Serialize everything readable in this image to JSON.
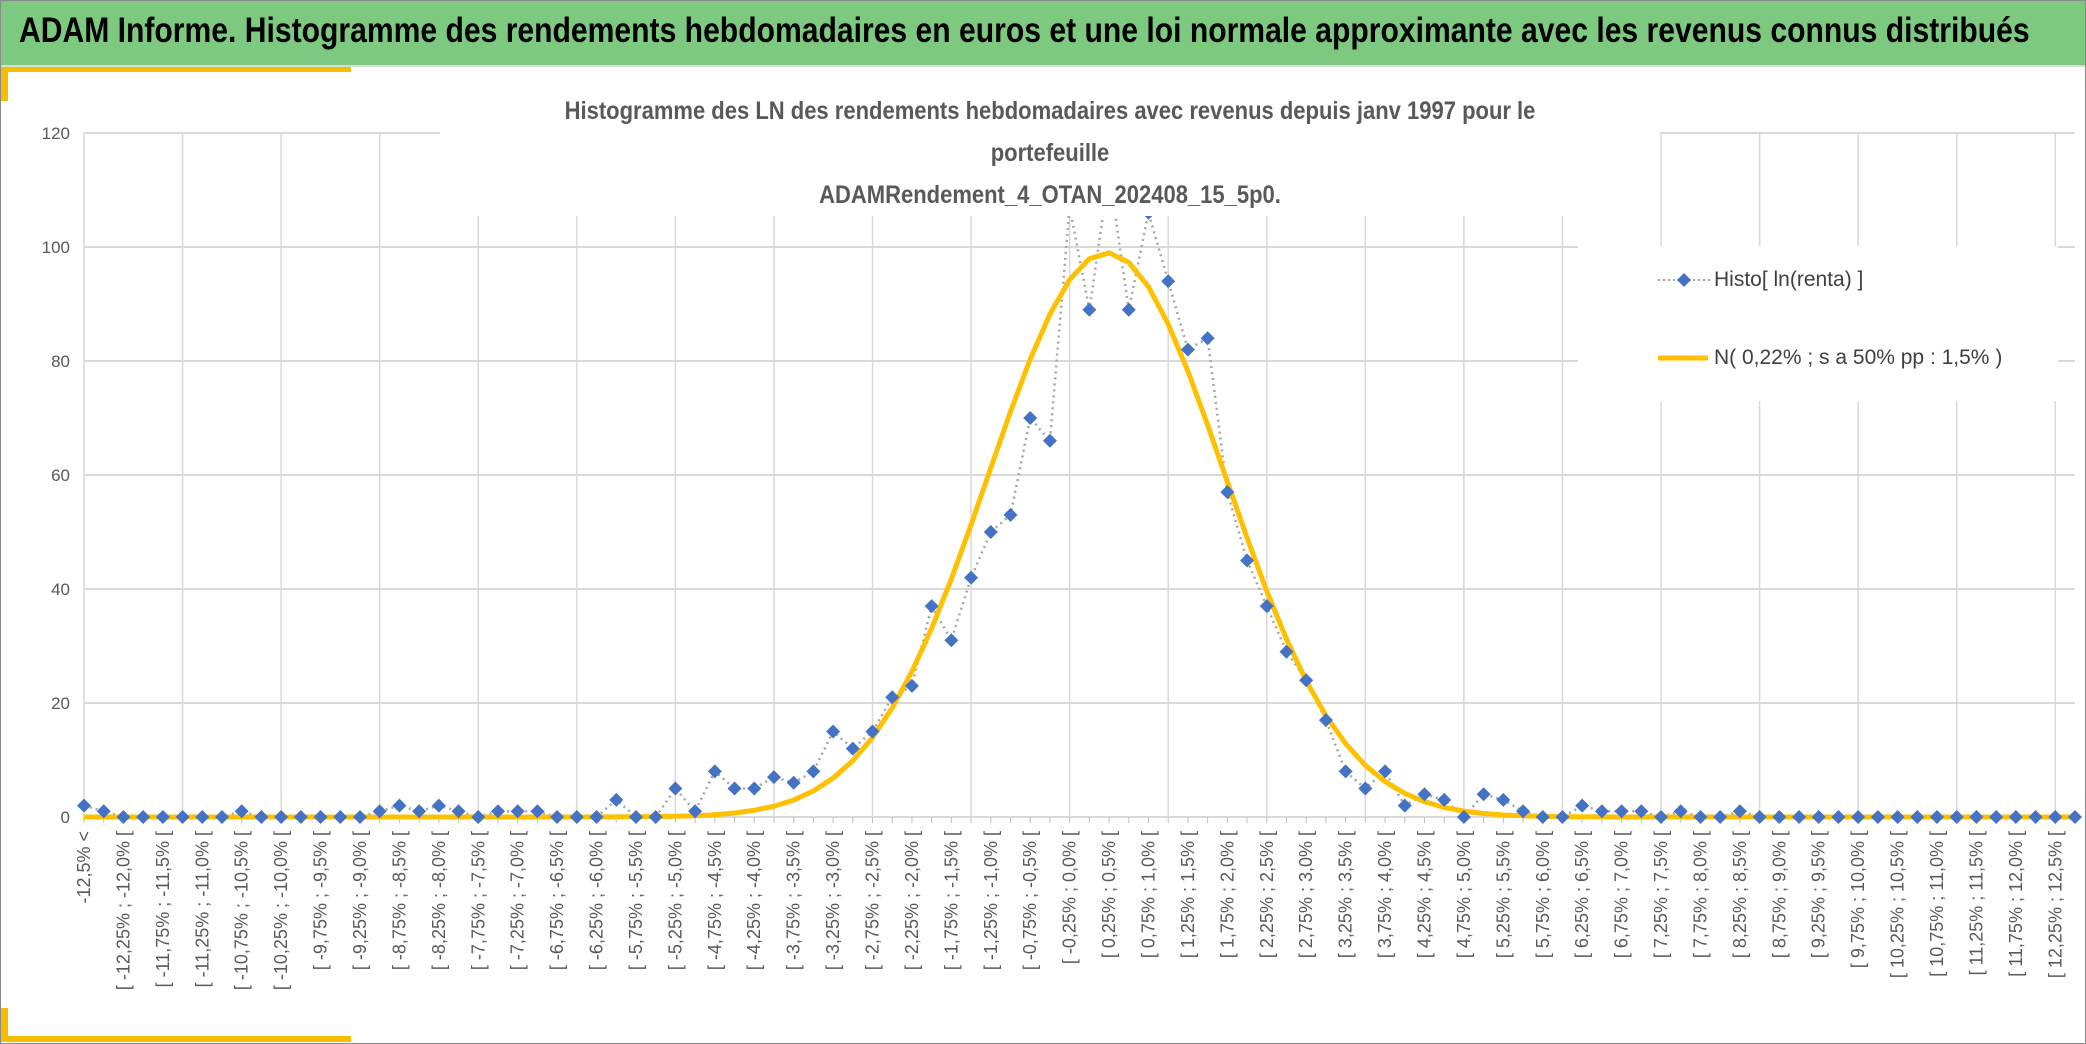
{
  "header": {
    "title": "ADAM Informe. Histogramme des rendements hebdomadaires en euros et une loi normale approximante avec les revenus connus distribués"
  },
  "colors": {
    "header_bg": "#7dc97f",
    "accent": "#f5be00",
    "series_histo": "#4472c4",
    "series_normal": "#ffc000"
  },
  "chart_data": {
    "type": "line",
    "title_line1": "Histogramme des LN des rendements hebdomadaires avec revenus depuis janv 1997 pour le portefeuille",
    "title_line2": "ADAMRendement_4_OTAN_202408_15_5p0.",
    "xlabel": "",
    "ylabel": "",
    "ylim": [
      0,
      120
    ],
    "yticks": [
      "0",
      "20",
      "40",
      "60",
      "80",
      "100",
      "120"
    ],
    "grid": true,
    "legend_position": "right",
    "x_tick_labels": [
      "-12,5% <",
      "[ -12,25% ; -12,0% [",
      "[ -11,75% ; -11,5% [",
      "[ -11,25% ; -11,0% [",
      "[ -10,75% ; -10,5% [",
      "[ -10,25% ; -10,0% [",
      "[ -9,75% ; -9,5% [",
      "[ -9,25% ; -9,0% [",
      "[ -8,75% ; -8,5% [",
      "[ -8,25% ; -8,0% [",
      "[ -7,75% ; -7,5% [",
      "[ -7,25% ; -7,0% [",
      "[ -6,75% ; -6,5% [",
      "[ -6,25% ; -6,0% [",
      "[ -5,75% ; -5,5% [",
      "[ -5,25% ; -5,0% [",
      "[ -4,75% ; -4,5% [",
      "[ -4,25% ; -4,0% [",
      "[ -3,75% ; -3,5% [",
      "[ -3,25% ; -3,0% [",
      "[ -2,75% ; -2,5% [",
      "[ -2,25% ; -2,0% [",
      "[ -1,75% ; -1,5% [",
      "[ -1,25% ; -1,0% [",
      "[ -0,75% ; -0,5% [",
      "[ -0,25% ; 0,0% [",
      "[ 0,25% ; 0,5% [",
      "[ 0,75% ; 1,0% [",
      "[ 1,25% ; 1,5% [",
      "[ 1,75% ; 2,0% [",
      "[ 2,25% ; 2,5% [",
      "[ 2,75% ; 3,0% [",
      "[ 3,25% ; 3,5% [",
      "[ 3,75% ; 4,0% [",
      "[ 4,25% ; 4,5% [",
      "[ 4,75% ; 5,0% [",
      "[ 5,25% ; 5,5% [",
      "[ 5,75% ; 6,0% [",
      "[ 6,25% ; 6,5% [",
      "[ 6,75% ; 7,0% [",
      "[ 7,25% ; 7,5% [",
      "[ 7,75% ; 8,0% [",
      "[ 8,25% ; 8,5% [",
      "[ 8,75% ; 9,0% [",
      "[ 9,25% ; 9,5% [",
      "[ 9,75% ; 10,0% [",
      "[ 10,25% ; 10,5% [",
      "[ 10,75% ; 11,0% [",
      "[ 11,25% ; 11,5% [",
      "[ 11,75% ; 12,0% [",
      "[ 12,25% ; 12,5% ["
    ],
    "series": [
      {
        "name": "Histo[ ln(renta) ]",
        "values": [
          2,
          1,
          0,
          0,
          0,
          0,
          0,
          0,
          1,
          0,
          0,
          0,
          0,
          0,
          0,
          1,
          2,
          1,
          2,
          1,
          0,
          1,
          1,
          1,
          0,
          0,
          0,
          3,
          0,
          0,
          5,
          1,
          8,
          5,
          5,
          7,
          6,
          8,
          15,
          12,
          15,
          21,
          23,
          37,
          31,
          42,
          50,
          53,
          70,
          66,
          107,
          89,
          113,
          89,
          106,
          94,
          82,
          84,
          57,
          45,
          37,
          29,
          24,
          17,
          8,
          5,
          8,
          2,
          4,
          3,
          0,
          4,
          3,
          1,
          0,
          0,
          2,
          1,
          1,
          1,
          0,
          1,
          0,
          0,
          1,
          0,
          0,
          0,
          0,
          0,
          0,
          0,
          0,
          0,
          0,
          0,
          0,
          0,
          0,
          0,
          0,
          0
        ]
      },
      {
        "name": "N( 0,22% ; s a 50% pp : 1,5% )",
        "mean_pct": 0.22,
        "sigma_pct": 1.5,
        "peak": 99
      }
    ]
  }
}
